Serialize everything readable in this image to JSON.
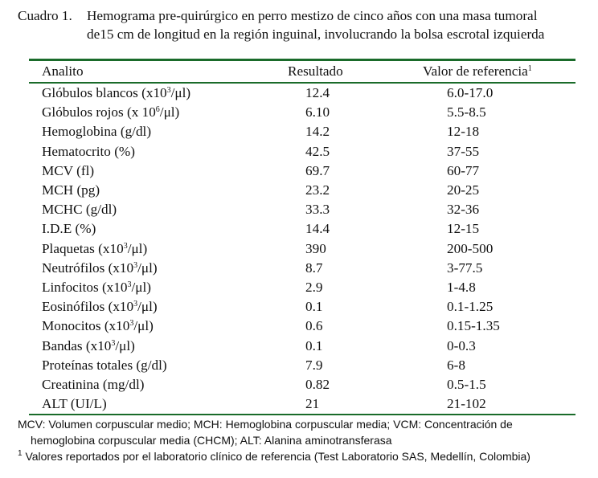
{
  "caption": {
    "label": "Cuadro 1.",
    "line1": "Hemograma pre-quirúrgico en perro mestizo de cinco años con una masa tumoral",
    "line2": "de15 cm de longitud en la región inguinal, involucrando la bolsa escrotal izquierda"
  },
  "table": {
    "headers": {
      "analyte": "Analito",
      "result": "Resultado",
      "reference": "Valor de referencia",
      "reference_sup": "1"
    },
    "rows": [
      {
        "pre": "Glóbulos blancos (x10",
        "sup": "3",
        "post": "/μl)",
        "result": "12.4",
        "reference": "6.0-17.0"
      },
      {
        "pre": "Glóbulos rojos (x 10",
        "sup": "6",
        "post": "/μl)",
        "result": "6.10",
        "reference": "5.5-8.5"
      },
      {
        "pre": "Hemoglobina (g/dl)",
        "sup": "",
        "post": "",
        "result": "14.2",
        "reference": "12-18"
      },
      {
        "pre": "Hematocrito (%)",
        "sup": "",
        "post": "",
        "result": "42.5",
        "reference": "37-55"
      },
      {
        "pre": "MCV (fl)",
        "sup": "",
        "post": "",
        "result": "69.7",
        "reference": "60-77"
      },
      {
        "pre": "MCH (pg)",
        "sup": "",
        "post": "",
        "result": "23.2",
        "reference": "20-25"
      },
      {
        "pre": "MCHC (g/dl)",
        "sup": "",
        "post": "",
        "result": "33.3",
        "reference": "32-36"
      },
      {
        "pre": "I.D.E (%)",
        "sup": "",
        "post": "",
        "result": "14.4",
        "reference": "12-15"
      },
      {
        "pre": "Plaquetas (x10",
        "sup": "3",
        "post": "/μl)",
        "result": "390",
        "reference": "200-500"
      },
      {
        "pre": "Neutrófilos (x10",
        "sup": "3",
        "post": "/μl)",
        "result": "8.7",
        "reference": "3-77.5"
      },
      {
        "pre": "Linfocitos (x10",
        "sup": "3",
        "post": "/μl)",
        "result": "2.9",
        "reference": "1-4.8"
      },
      {
        "pre": "Eosinófilos (x10",
        "sup": "3",
        "post": "/μl)",
        "result": "0.1",
        "reference": "0.1-1.25"
      },
      {
        "pre": "Monocitos (x10",
        "sup": "3",
        "post": "/μl)",
        "result": "0.6",
        "reference": "0.15-1.35"
      },
      {
        "pre": "Bandas (x10",
        "sup": "3",
        "post": "/μl)",
        "result": "0.1",
        "reference": "0-0.3"
      },
      {
        "pre": "Proteínas totales (g/dl)",
        "sup": "",
        "post": "",
        "result": "7.9",
        "reference": "6-8"
      },
      {
        "pre": "Creatinina (mg/dl)",
        "sup": "",
        "post": "",
        "result": "0.82",
        "reference": "0.5-1.5"
      },
      {
        "pre": "ALT (UI/L)",
        "sup": "",
        "post": "",
        "result": "21",
        "reference": "21-102"
      }
    ]
  },
  "notes": {
    "abbrev_line1": "MCV: Volumen corpuscular medio; MCH: Hemoglobina corpuscular media; VCM: Concentración de",
    "abbrev_line2": "hemoglobina corpuscular media (CHCM); ALT: Alanina aminotransferasa",
    "footnote_mark": "1",
    "footnote_text": " Valores reportados por el laboratorio clínico de referencia (Test Laboratorio SAS, Medellín, Colombia)"
  }
}
